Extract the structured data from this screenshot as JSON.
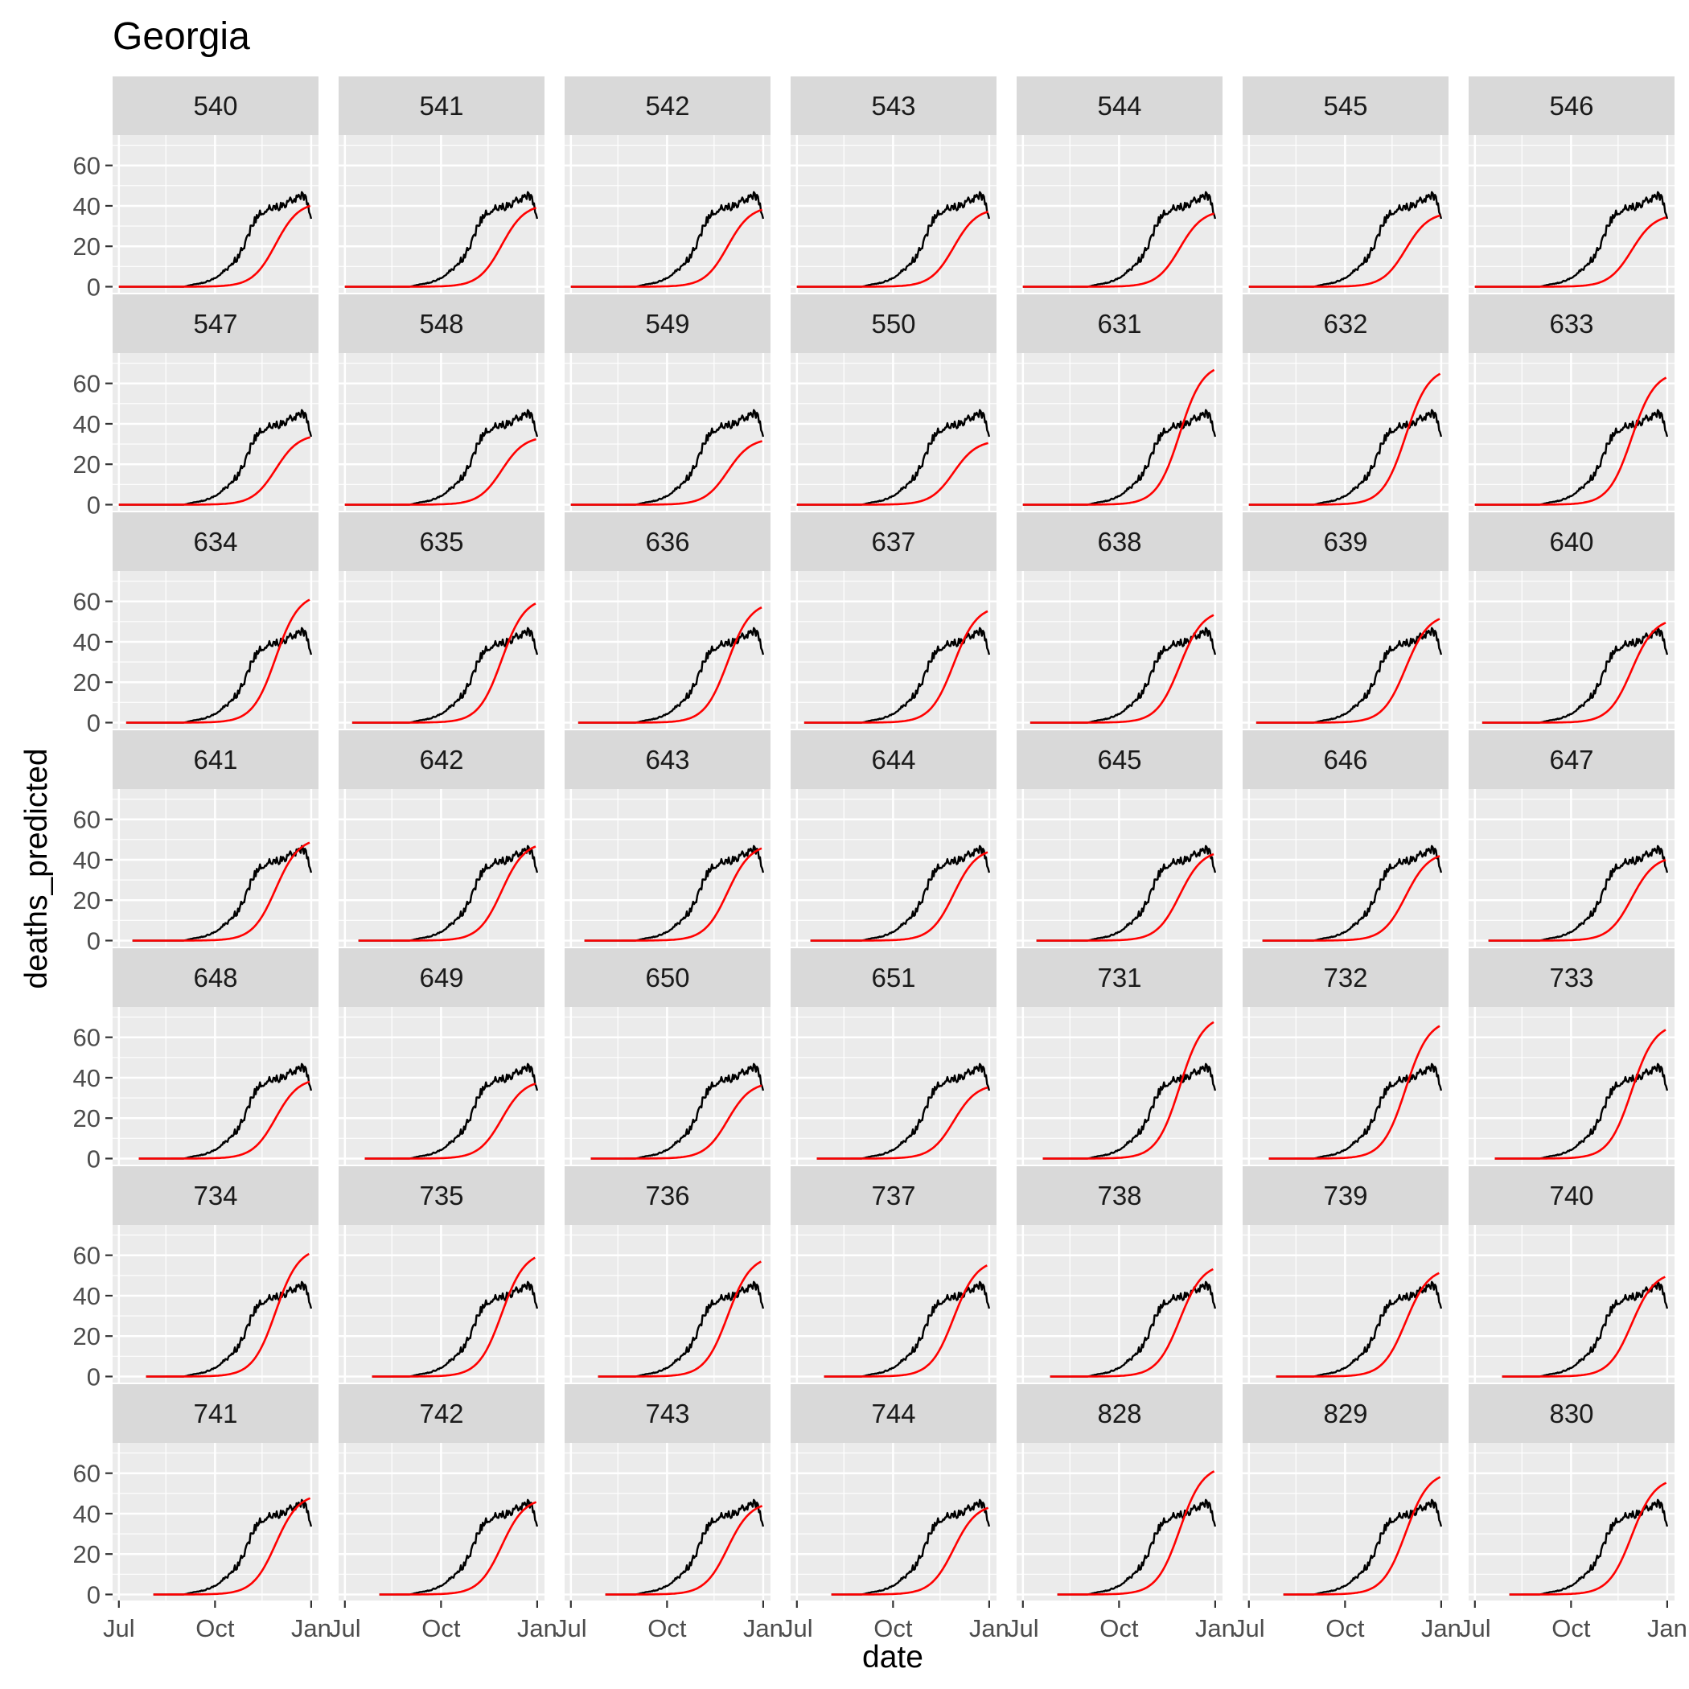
{
  "chart_data": {
    "type": "line",
    "title": "Georgia",
    "xlabel": "date",
    "ylabel": "deaths_predicted",
    "x_ticks": [
      "Jul",
      "Oct",
      "Jan"
    ],
    "y_ticks": [
      0,
      20,
      40,
      60
    ],
    "xlim": [
      "2020-06-25",
      "2021-01-08"
    ],
    "ylim": [
      -3,
      75
    ],
    "colors": {
      "observed": "#000000",
      "predicted": "#ff0000",
      "panel_bg": "#ebebeb",
      "grid": "#ffffff",
      "strip_bg": "#d9d9d9"
    },
    "observed_series": {
      "x": [
        "2020-07-01",
        "2020-07-15",
        "2020-08-01",
        "2020-08-15",
        "2020-09-01",
        "2020-09-10",
        "2020-09-20",
        "2020-10-01",
        "2020-10-08",
        "2020-10-15",
        "2020-10-22",
        "2020-10-29",
        "2020-11-05",
        "2020-11-12",
        "2020-11-19",
        "2020-11-26",
        "2020-12-03",
        "2020-12-10",
        "2020-12-17",
        "2020-12-24",
        "2020-12-28",
        "2021-01-01"
      ],
      "y": [
        0,
        0,
        0,
        0,
        0,
        1,
        2,
        4,
        7,
        10,
        14,
        20,
        30,
        36,
        38,
        39,
        40,
        42,
        44,
        45,
        42,
        34
      ]
    },
    "panels": [
      {
        "id": "540",
        "start": "2020-07-01",
        "peak": 42
      },
      {
        "id": "541",
        "start": "2020-07-01",
        "peak": 41
      },
      {
        "id": "542",
        "start": "2020-07-01",
        "peak": 40
      },
      {
        "id": "543",
        "start": "2020-07-01",
        "peak": 39
      },
      {
        "id": "544",
        "start": "2020-07-01",
        "peak": 38
      },
      {
        "id": "545",
        "start": "2020-07-01",
        "peak": 37
      },
      {
        "id": "546",
        "start": "2020-07-01",
        "peak": 36
      },
      {
        "id": "547",
        "start": "2020-07-01",
        "peak": 35
      },
      {
        "id": "548",
        "start": "2020-07-01",
        "peak": 34
      },
      {
        "id": "549",
        "start": "2020-07-01",
        "peak": 33
      },
      {
        "id": "550",
        "start": "2020-07-01",
        "peak": 32
      },
      {
        "id": "631",
        "start": "2020-07-01",
        "peak": 70
      },
      {
        "id": "632",
        "start": "2020-07-01",
        "peak": 68
      },
      {
        "id": "633",
        "start": "2020-07-01",
        "peak": 66
      },
      {
        "id": "634",
        "start": "2020-07-08",
        "peak": 64
      },
      {
        "id": "635",
        "start": "2020-07-08",
        "peak": 62
      },
      {
        "id": "636",
        "start": "2020-07-08",
        "peak": 60
      },
      {
        "id": "637",
        "start": "2020-07-08",
        "peak": 58
      },
      {
        "id": "638",
        "start": "2020-07-08",
        "peak": 56
      },
      {
        "id": "639",
        "start": "2020-07-08",
        "peak": 54
      },
      {
        "id": "640",
        "start": "2020-07-08",
        "peak": 52
      },
      {
        "id": "641",
        "start": "2020-07-14",
        "peak": 51
      },
      {
        "id": "642",
        "start": "2020-07-14",
        "peak": 49
      },
      {
        "id": "643",
        "start": "2020-07-14",
        "peak": 48
      },
      {
        "id": "644",
        "start": "2020-07-14",
        "peak": 46
      },
      {
        "id": "645",
        "start": "2020-07-14",
        "peak": 45
      },
      {
        "id": "646",
        "start": "2020-07-14",
        "peak": 44
      },
      {
        "id": "647",
        "start": "2020-07-14",
        "peak": 42
      },
      {
        "id": "648",
        "start": "2020-07-20",
        "peak": 40
      },
      {
        "id": "649",
        "start": "2020-07-20",
        "peak": 39
      },
      {
        "id": "650",
        "start": "2020-07-20",
        "peak": 38
      },
      {
        "id": "651",
        "start": "2020-07-20",
        "peak": 37
      },
      {
        "id": "731",
        "start": "2020-07-20",
        "peak": 71
      },
      {
        "id": "732",
        "start": "2020-07-20",
        "peak": 69
      },
      {
        "id": "733",
        "start": "2020-07-20",
        "peak": 67
      },
      {
        "id": "734",
        "start": "2020-07-27",
        "peak": 64
      },
      {
        "id": "735",
        "start": "2020-07-27",
        "peak": 62
      },
      {
        "id": "736",
        "start": "2020-07-27",
        "peak": 60
      },
      {
        "id": "737",
        "start": "2020-07-27",
        "peak": 58
      },
      {
        "id": "738",
        "start": "2020-07-27",
        "peak": 56
      },
      {
        "id": "739",
        "start": "2020-07-27",
        "peak": 54
      },
      {
        "id": "740",
        "start": "2020-07-27",
        "peak": 52
      },
      {
        "id": "741",
        "start": "2020-08-03",
        "peak": 50
      },
      {
        "id": "742",
        "start": "2020-08-03",
        "peak": 48
      },
      {
        "id": "743",
        "start": "2020-08-03",
        "peak": 46
      },
      {
        "id": "744",
        "start": "2020-08-03",
        "peak": 45
      },
      {
        "id": "828",
        "start": "2020-08-03",
        "peak": 64
      },
      {
        "id": "829",
        "start": "2020-08-03",
        "peak": 61
      },
      {
        "id": "830",
        "start": "2020-08-03",
        "peak": 58
      }
    ]
  }
}
